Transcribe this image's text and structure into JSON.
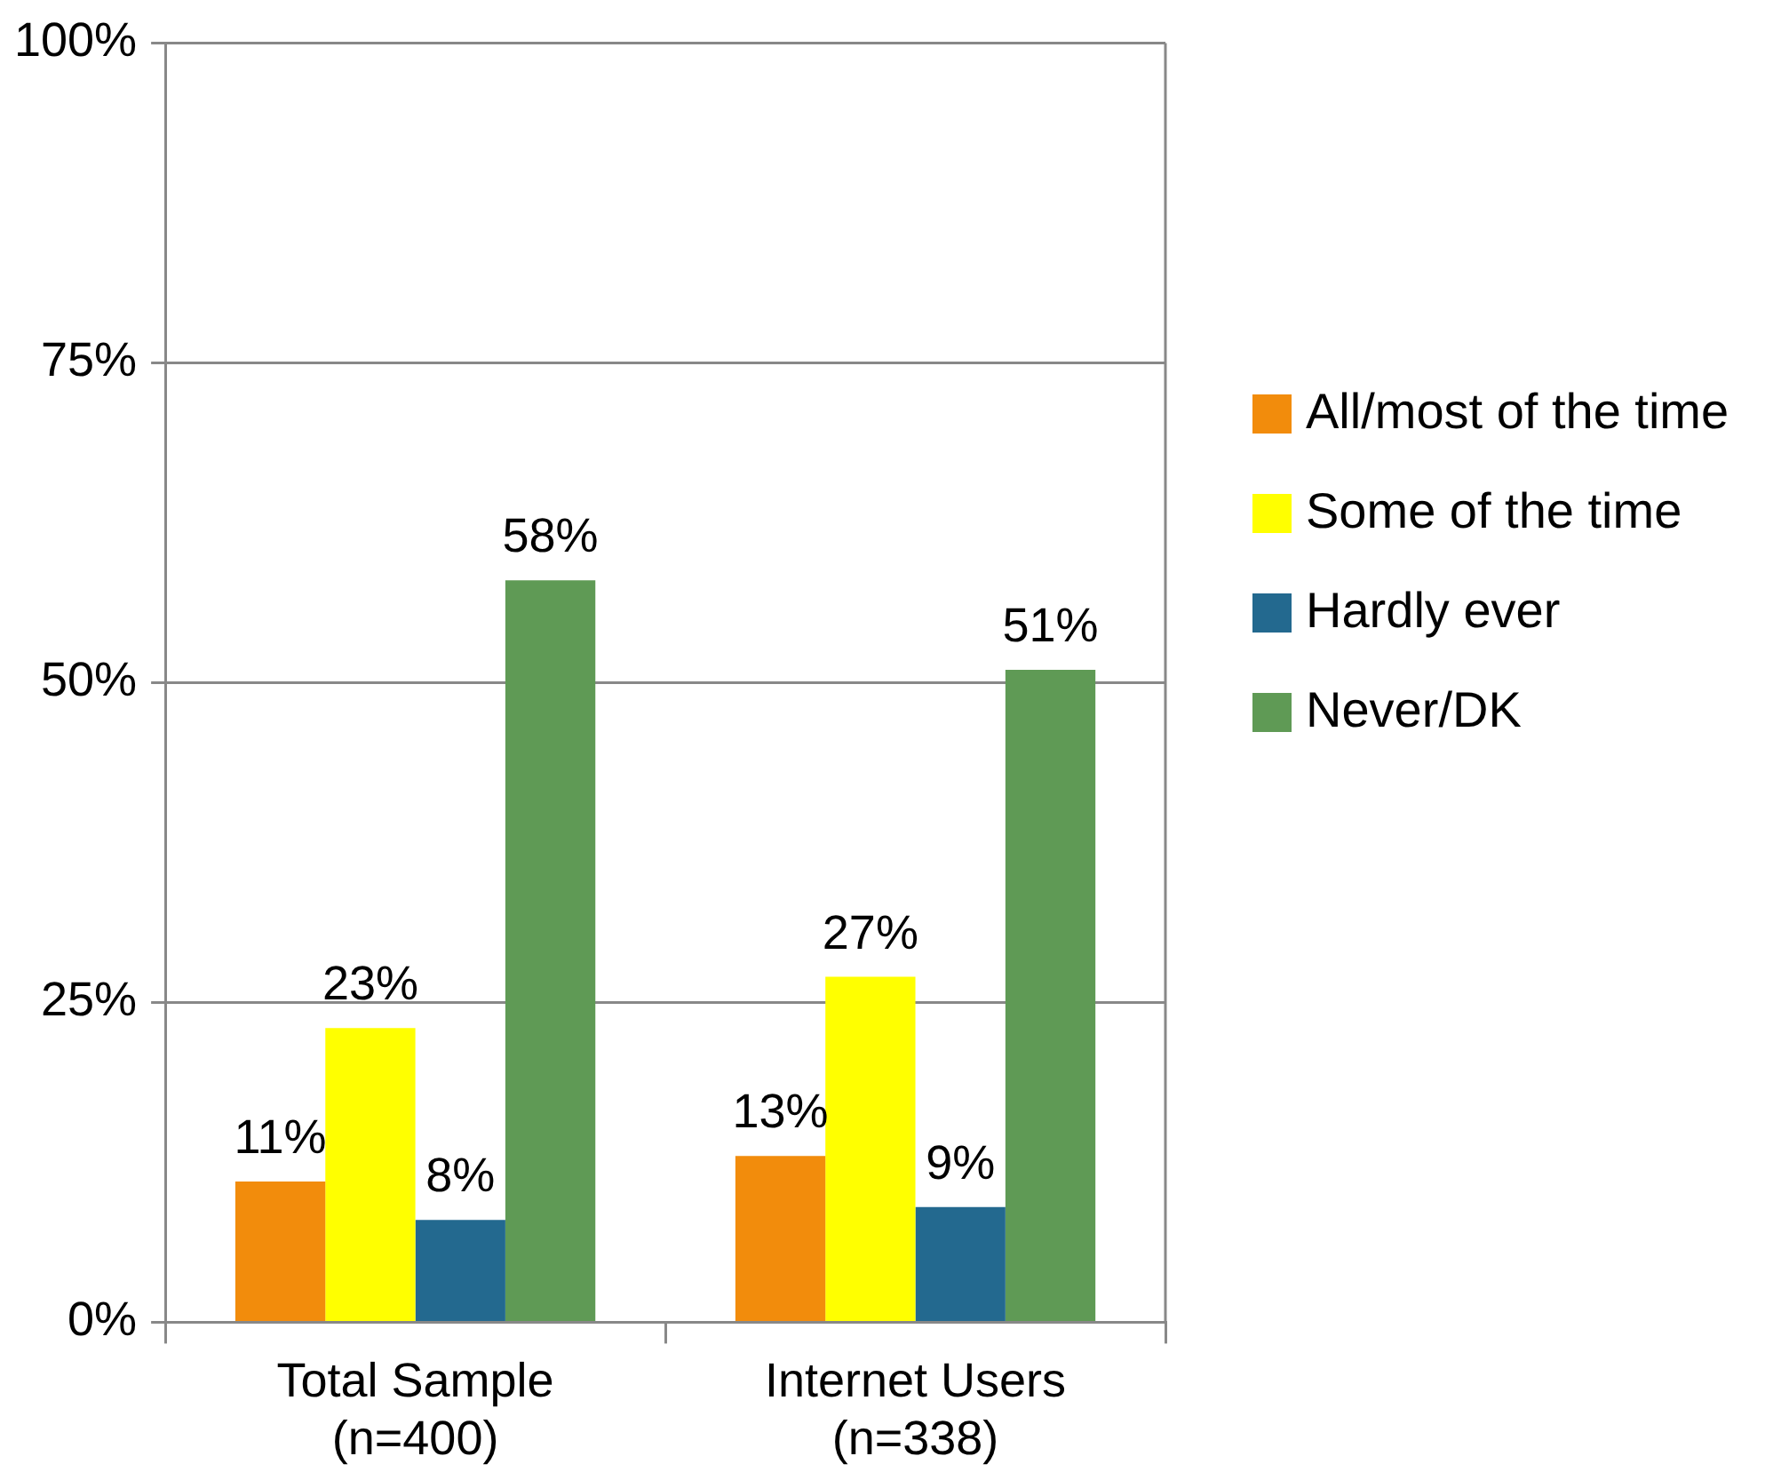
{
  "chart_data": {
    "type": "bar",
    "categories": [
      "Total Sample\n(n=400)",
      "Internet Users\n(n=338)"
    ],
    "series": [
      {
        "name": "All/most of the time",
        "color": "#f28c0c",
        "values": [
          11,
          13
        ],
        "value_labels": [
          "11%",
          "13%"
        ]
      },
      {
        "name": "Some of the time",
        "color": "#ffff00",
        "values": [
          23,
          27
        ],
        "value_labels": [
          "23%",
          "27%"
        ]
      },
      {
        "name": "Hardly ever",
        "color": "#23698f",
        "values": [
          8,
          9
        ],
        "value_labels": [
          "8%",
          "9%"
        ]
      },
      {
        "name": "Never/DK",
        "color": "#5f9a55",
        "values": [
          58,
          51
        ],
        "value_labels": [
          "58%",
          "51%"
        ]
      }
    ],
    "ylim": [
      0,
      100
    ],
    "yticks": [
      {
        "value": 0,
        "label": "0%"
      },
      {
        "value": 25,
        "label": "25%"
      },
      {
        "value": 50,
        "label": "50%"
      },
      {
        "value": 75,
        "label": "75%"
      },
      {
        "value": 100,
        "label": "100%"
      }
    ],
    "grid": "y",
    "legend": "right"
  }
}
